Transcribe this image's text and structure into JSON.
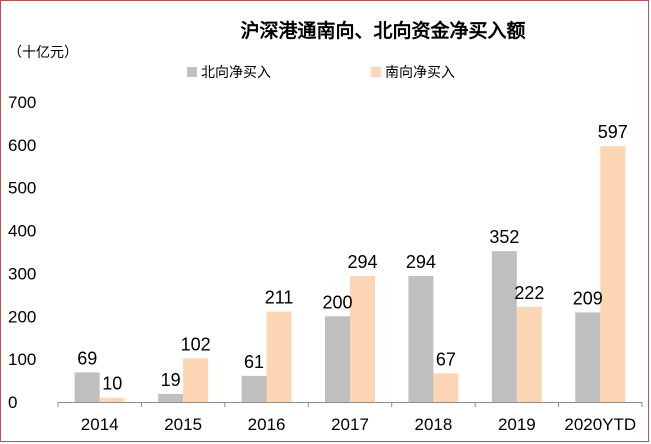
{
  "chart_data": {
    "type": "bar",
    "title": "沪深港通南向、北向资金净买入额",
    "unit_label": "（十亿元）",
    "categories": [
      "2014",
      "2015",
      "2016",
      "2017",
      "2018",
      "2019",
      "2020YTD"
    ],
    "series": [
      {
        "name": "北向净买入",
        "color": "#bfbfbf",
        "values": [
          69,
          19,
          61,
          200,
          294,
          352,
          209
        ]
      },
      {
        "name": "南向净买入",
        "color": "#fcd5b4",
        "values": [
          10,
          102,
          211,
          294,
          67,
          222,
          597
        ]
      }
    ],
    "ylim": [
      0,
      700
    ],
    "yticks": [
      0,
      100,
      200,
      300,
      400,
      500,
      600,
      700
    ],
    "legend_position": "top-center",
    "grid": false
  }
}
